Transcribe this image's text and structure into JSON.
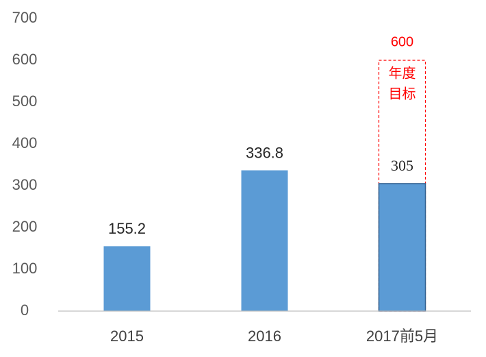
{
  "chart_data": {
    "type": "bar",
    "categories": [
      "2015",
      "2016",
      "2017前5月"
    ],
    "values": [
      155.2,
      336.8,
      305
    ],
    "color": "#5b9bd5",
    "ylim": [
      0,
      700
    ],
    "yticks": [
      0,
      100,
      200,
      300,
      400,
      500,
      600,
      700
    ],
    "grid": false,
    "target": {
      "category": 2,
      "value": 600,
      "label": [
        "年度",
        "目标"
      ],
      "color": "#ff0000"
    }
  }
}
